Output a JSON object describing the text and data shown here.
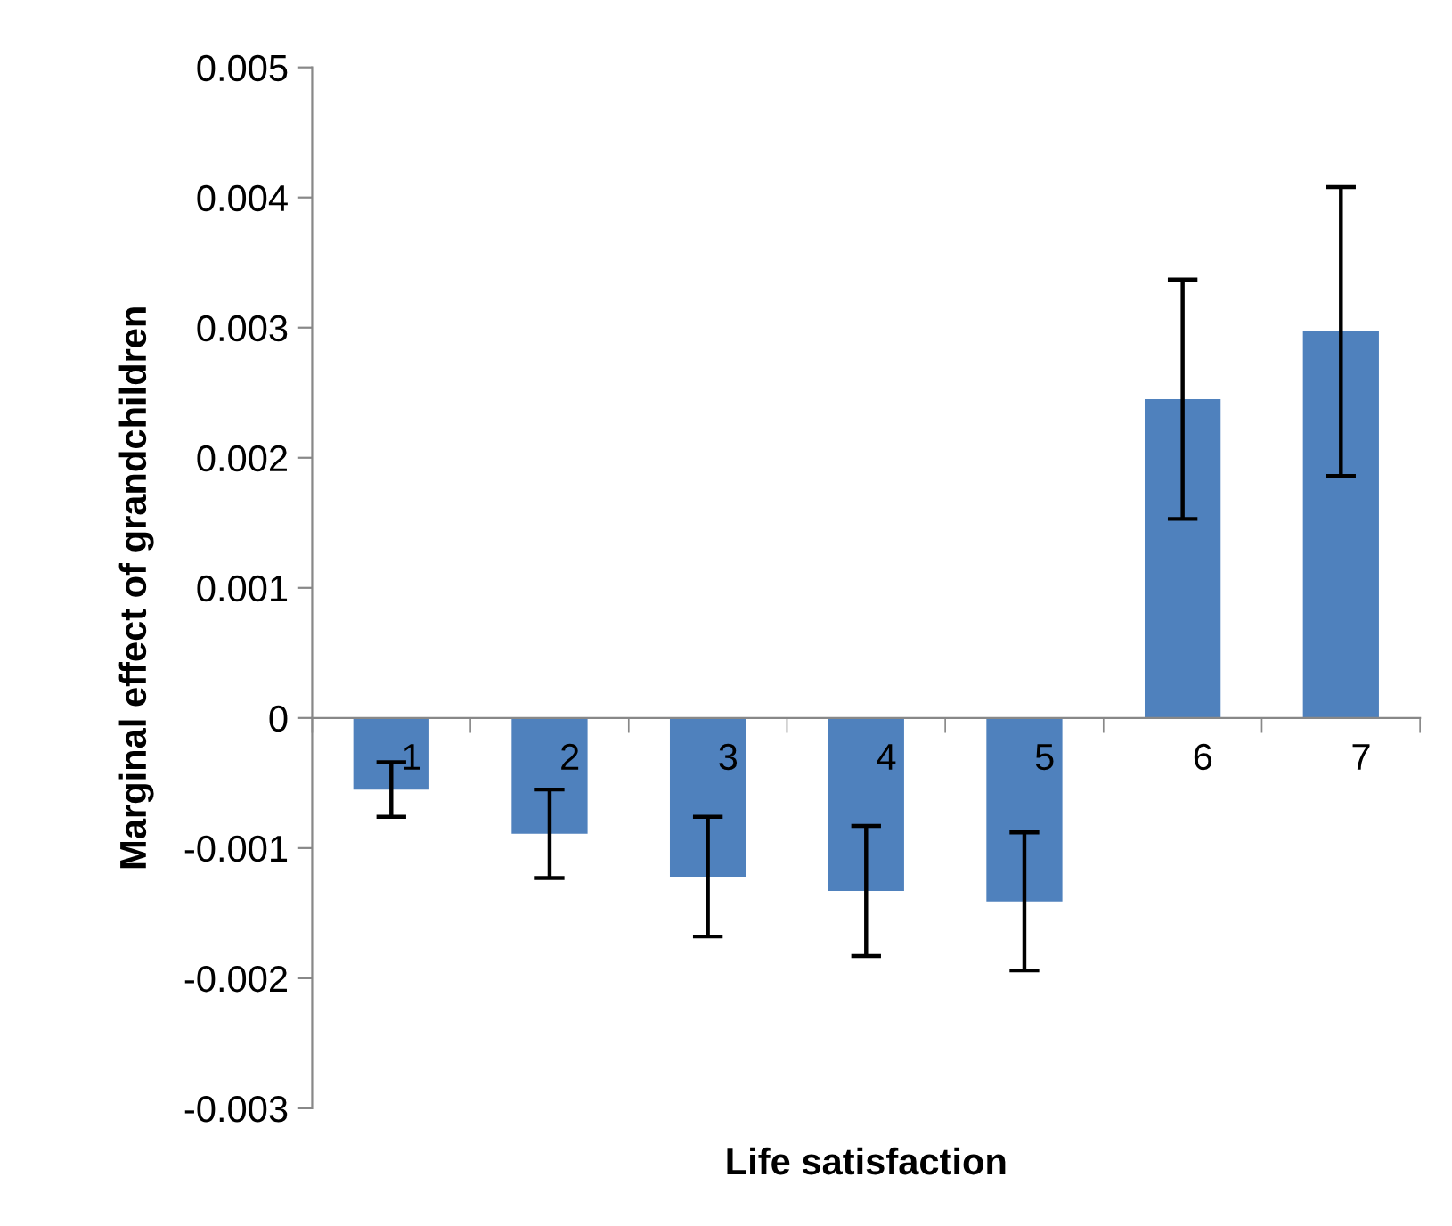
{
  "chart_data": {
    "type": "bar",
    "xlabel": "Life satisfaction",
    "ylabel": "Marginal effect of grandchildren",
    "categories": [
      "1",
      "2",
      "3",
      "4",
      "5",
      "6",
      "7"
    ],
    "values": [
      -0.00055,
      -0.00089,
      -0.00122,
      -0.00133,
      -0.00141,
      0.00245,
      0.00297
    ],
    "errors": [
      0.00021,
      0.00034,
      0.00046,
      0.0005,
      0.00053,
      0.00092,
      0.00111
    ],
    "color": "#4f81bd",
    "ylim": [
      -0.003,
      0.005
    ],
    "yticks": [
      -0.003,
      -0.002,
      -0.001,
      0,
      0.001,
      0.002,
      0.003,
      0.004,
      0.005
    ],
    "grid": false,
    "legend": false
  }
}
